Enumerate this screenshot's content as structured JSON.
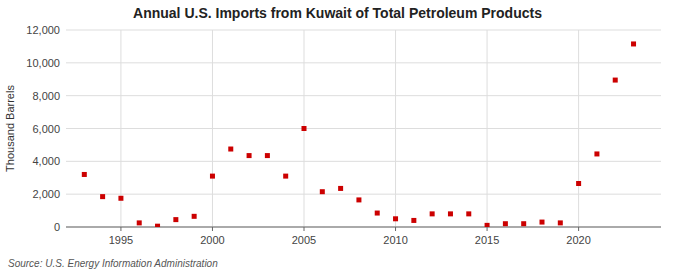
{
  "chart_data": {
    "type": "scatter",
    "title": "Annual U.S. Imports from Kuwait of Total Petroleum Products",
    "ylabel": "Thousand Barrels",
    "annotations": [
      "Source: U.S. Energy Information Administration"
    ],
    "x": [
      1993,
      1994,
      1995,
      1996,
      1997,
      1998,
      1999,
      2000,
      2001,
      2002,
      2003,
      2004,
      2005,
      2006,
      2007,
      2008,
      2009,
      2010,
      2011,
      2012,
      2013,
      2014,
      2015,
      2016,
      2017,
      2018,
      2019,
      2020,
      2021,
      2022,
      2023
    ],
    "values": [
      3200,
      1850,
      1750,
      250,
      50,
      450,
      650,
      3100,
      4750,
      4350,
      4350,
      3100,
      6000,
      2150,
      2350,
      1650,
      850,
      500,
      400,
      800,
      800,
      800,
      100,
      200,
      200,
      300,
      250,
      2650,
      4450,
      8950,
      11150
    ],
    "color": "#cc0000",
    "marker": "square",
    "xlim": [
      1992,
      2024.5
    ],
    "ylim": [
      0,
      12000
    ],
    "xticks": [
      1995,
      2000,
      2005,
      2010,
      2015,
      2020
    ],
    "yticks": [
      0,
      {
        "value": 2000,
        "label": "2,000"
      },
      {
        "value": 4000,
        "label": "4,000"
      },
      {
        "value": 6000,
        "label": "6,000"
      },
      {
        "value": 8000,
        "label": "8,000"
      },
      {
        "value": 10000,
        "label": "10,000"
      },
      {
        "value": 12000,
        "label": "12,000"
      }
    ],
    "grid": true
  }
}
